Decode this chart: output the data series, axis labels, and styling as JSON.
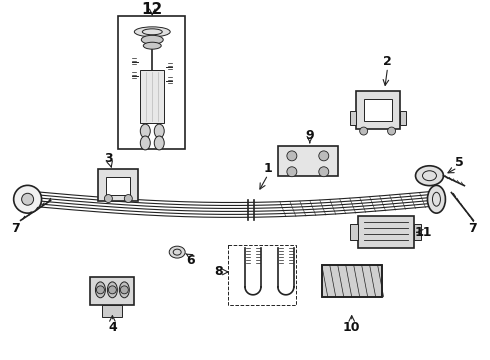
{
  "bg_color": "#ffffff",
  "line_color": "#222222",
  "label_color": "#111111",
  "fig_width": 4.9,
  "fig_height": 3.6,
  "dpi": 100
}
